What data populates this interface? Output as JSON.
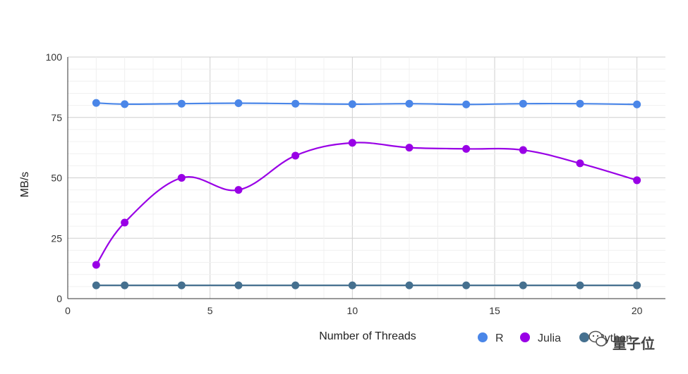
{
  "chart_data": {
    "type": "line",
    "xlabel": "Number of Threads",
    "ylabel": "MB/s",
    "xlim": [
      0,
      21
    ],
    "ylim": [
      0,
      100
    ],
    "x_ticks": [
      0,
      5,
      10,
      15,
      20
    ],
    "y_ticks": [
      0,
      25,
      50,
      75,
      100
    ],
    "grid": true,
    "legend_position": "bottom-right",
    "x": [
      1,
      2,
      4,
      6,
      8,
      10,
      12,
      14,
      16,
      18,
      20
    ],
    "series": [
      {
        "name": "R",
        "color": "#4a86e8",
        "values": [
          81,
          80.5,
          80.7,
          80.9,
          80.7,
          80.5,
          80.7,
          80.4,
          80.7,
          80.7,
          80.4
        ]
      },
      {
        "name": "Julia",
        "color": "#9900e6",
        "values": [
          14,
          31.5,
          50,
          45,
          59.2,
          64.5,
          62.5,
          62,
          61.5,
          56,
          49
        ]
      },
      {
        "name": "Python",
        "color": "#45708f",
        "values": [
          5.5,
          5.5,
          5.5,
          5.5,
          5.5,
          5.5,
          5.5,
          5.5,
          5.5,
          5.5,
          5.5
        ]
      }
    ]
  },
  "watermark": {
    "text": "量子位",
    "icon": "wechat-icon"
  }
}
